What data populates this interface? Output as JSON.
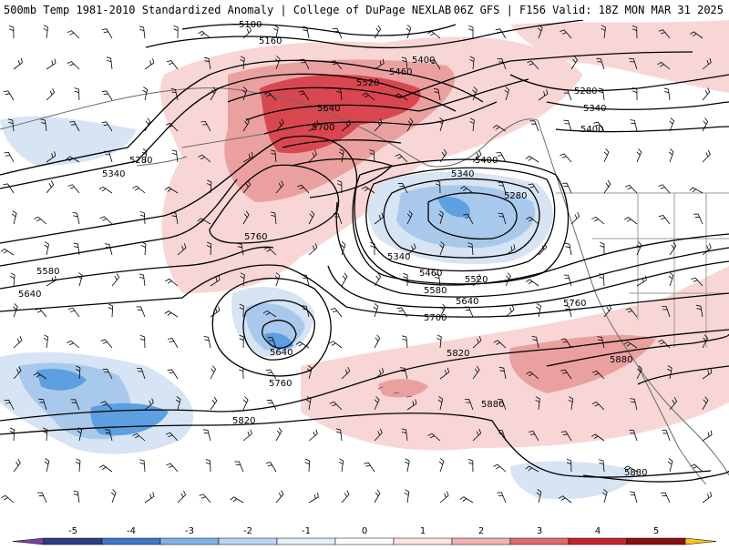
{
  "header": {
    "title_left": "500mb Temp 1981-2010 Standardized Anomaly | College of DuPage NEXLAB",
    "title_right": "06Z GFS | F156 Valid: 18Z MON MAR 31 2025"
  },
  "colors": {
    "anom_pos_1": "#f9d6d6",
    "anom_pos_2": "#eba0a0",
    "anom_pos_3": "#d8474f",
    "anom_neg_1": "#d6e4f4",
    "anom_neg_2": "#a9c9ec",
    "anom_neg_3": "#5d9fe0",
    "contour": "#000000",
    "coastline": "#6a6a6a"
  },
  "contour_labels": [
    {
      "text": "5100"
    },
    {
      "text": "5160"
    },
    {
      "text": "5400"
    },
    {
      "text": "5460"
    },
    {
      "text": "5520"
    },
    {
      "text": "5640"
    },
    {
      "text": "5700"
    },
    {
      "text": "5280"
    },
    {
      "text": "5340"
    },
    {
      "text": "5760"
    },
    {
      "text": "5580"
    },
    {
      "text": "5640"
    },
    {
      "text": "5400"
    },
    {
      "text": "5340"
    },
    {
      "text": "5280"
    },
    {
      "text": "5340"
    },
    {
      "text": "5460"
    },
    {
      "text": "5520"
    },
    {
      "text": "5580"
    },
    {
      "text": "5640"
    },
    {
      "text": "5700"
    },
    {
      "text": "5760"
    },
    {
      "text": "5640"
    },
    {
      "text": "5760"
    },
    {
      "text": "5820"
    },
    {
      "text": "5820"
    },
    {
      "text": "5880"
    },
    {
      "text": "5880"
    },
    {
      "text": "5880"
    },
    {
      "text": "5280"
    },
    {
      "text": "5340"
    },
    {
      "text": "5400"
    }
  ],
  "colorbar": {
    "ticks": [
      "-5",
      "-4",
      "-3",
      "-2",
      "-1",
      "0",
      "1",
      "2",
      "3",
      "4",
      "5"
    ],
    "segments": [
      "#2c3e82",
      "#3d78c8",
      "#7fb2e4",
      "#b9d6f1",
      "#e4eef9",
      "#ffffff",
      "#fbe5e5",
      "#f1b3b3",
      "#de6b6f",
      "#c7232d",
      "#8a0f12"
    ],
    "left_end": "#7b3fa1",
    "right_end": "#f5c518"
  }
}
